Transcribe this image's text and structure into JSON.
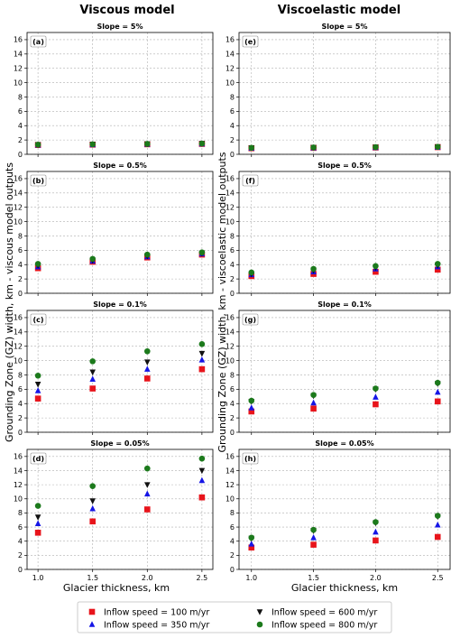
{
  "columns": [
    {
      "title": "Viscous model",
      "ylabel": "Grounding Zone (GZ) width, km - viscous model outputs"
    },
    {
      "title": "Viscoelastic model",
      "ylabel": "Grounding Zone (GZ) width, km - viscoelastic model outputs"
    }
  ],
  "xlabel": "Glacier thickness, km",
  "colors": {
    "s100": "#e8141b",
    "s350": "#1515e6",
    "s600": "#111111",
    "s800": "#1c7a1c"
  },
  "legend": [
    {
      "label": "Inflow speed = 100 m/yr",
      "marker": "square",
      "color": "#e8141b"
    },
    {
      "label": "Inflow speed = 600 m/yr",
      "marker": "triangle-down",
      "color": "#111111"
    },
    {
      "label": "Inflow speed = 350 m/yr",
      "marker": "triangle-up",
      "color": "#1515e6"
    },
    {
      "label": "Inflow speed = 800 m/yr",
      "marker": "circle",
      "color": "#1c7a1c"
    }
  ],
  "chart_data": [
    {
      "panel": "(a)",
      "type": "scatter",
      "title": "Slope = 5%",
      "x": [
        1.0,
        1.5,
        2.0,
        2.5
      ],
      "xticks": [
        "1.0",
        "1.5",
        "2.0",
        "2.5"
      ],
      "ylim": [
        0,
        17
      ],
      "yticks": [
        0,
        2,
        4,
        6,
        8,
        10,
        12,
        14,
        16
      ],
      "grid": true,
      "series": [
        {
          "name": "Inflow speed = 100 m/yr",
          "values": [
            1.3,
            1.35,
            1.4,
            1.45
          ]
        },
        {
          "name": "Inflow speed = 350 m/yr",
          "values": [
            1.3,
            1.35,
            1.4,
            1.45
          ]
        },
        {
          "name": "Inflow speed = 600 m/yr",
          "values": [
            1.35,
            1.4,
            1.45,
            1.5
          ]
        },
        {
          "name": "Inflow speed = 800 m/yr",
          "values": [
            1.35,
            1.4,
            1.45,
            1.5
          ]
        }
      ]
    },
    {
      "panel": "(b)",
      "type": "scatter",
      "title": "Slope = 0.5%",
      "x": [
        1.0,
        1.5,
        2.0,
        2.5
      ],
      "xticks": [
        "1.0",
        "1.5",
        "2.0",
        "2.5"
      ],
      "ylim": [
        0,
        17
      ],
      "yticks": [
        0,
        2,
        4,
        6,
        8,
        10,
        12,
        14,
        16
      ],
      "grid": true,
      "series": [
        {
          "name": "Inflow speed = 100 m/yr",
          "values": [
            3.5,
            4.4,
            5.0,
            5.4
          ]
        },
        {
          "name": "Inflow speed = 350 m/yr",
          "values": [
            3.7,
            4.5,
            5.1,
            5.5
          ]
        },
        {
          "name": "Inflow speed = 600 m/yr",
          "values": [
            3.9,
            4.6,
            5.2,
            5.6
          ]
        },
        {
          "name": "Inflow speed = 800 m/yr",
          "values": [
            4.1,
            4.8,
            5.4,
            5.7
          ]
        }
      ]
    },
    {
      "panel": "(c)",
      "type": "scatter",
      "title": "Slope = 0.1%",
      "x": [
        1.0,
        1.5,
        2.0,
        2.5
      ],
      "xticks": [
        "1.0",
        "1.5",
        "2.0",
        "2.5"
      ],
      "ylim": [
        0,
        17
      ],
      "yticks": [
        0,
        2,
        4,
        6,
        8,
        10,
        12,
        14,
        16
      ],
      "grid": true,
      "series": [
        {
          "name": "Inflow speed = 100 m/yr",
          "values": [
            4.7,
            6.1,
            7.5,
            8.8
          ]
        },
        {
          "name": "Inflow speed = 350 m/yr",
          "values": [
            5.8,
            7.4,
            8.8,
            10.1
          ]
        },
        {
          "name": "Inflow speed = 600 m/yr",
          "values": [
            6.7,
            8.4,
            9.8,
            11.0
          ]
        },
        {
          "name": "Inflow speed = 800 m/yr",
          "values": [
            7.9,
            9.9,
            11.3,
            12.3
          ]
        }
      ]
    },
    {
      "panel": "(d)",
      "type": "scatter",
      "title": "Slope = 0.05%",
      "x": [
        1.0,
        1.5,
        2.0,
        2.5
      ],
      "xticks": [
        "1.0",
        "1.5",
        "2.0",
        "2.5"
      ],
      "ylim": [
        0,
        17
      ],
      "yticks": [
        0,
        2,
        4,
        6,
        8,
        10,
        12,
        14,
        16
      ],
      "grid": true,
      "series": [
        {
          "name": "Inflow speed = 100 m/yr",
          "values": [
            5.2,
            6.8,
            8.5,
            10.2
          ]
        },
        {
          "name": "Inflow speed = 350 m/yr",
          "values": [
            6.5,
            8.6,
            10.7,
            12.6
          ]
        },
        {
          "name": "Inflow speed = 600 m/yr",
          "values": [
            7.4,
            9.7,
            12.0,
            14.0
          ]
        },
        {
          "name": "Inflow speed = 800 m/yr",
          "values": [
            9.0,
            11.8,
            14.3,
            15.7
          ]
        }
      ]
    },
    {
      "panel": "(e)",
      "type": "scatter",
      "title": "Slope = 5%",
      "x": [
        1.0,
        1.5,
        2.0,
        2.5
      ],
      "xticks": [
        "1.0",
        "1.5",
        "2.0",
        "2.5"
      ],
      "ylim": [
        0,
        17
      ],
      "yticks": [
        0,
        2,
        4,
        6,
        8,
        10,
        12,
        14,
        16
      ],
      "grid": true,
      "series": [
        {
          "name": "Inflow speed = 100 m/yr",
          "values": [
            0.85,
            0.9,
            0.95,
            1.0
          ]
        },
        {
          "name": "Inflow speed = 350 m/yr",
          "values": [
            0.85,
            0.9,
            0.95,
            1.0
          ]
        },
        {
          "name": "Inflow speed = 600 m/yr",
          "values": [
            0.9,
            0.95,
            1.0,
            1.05
          ]
        },
        {
          "name": "Inflow speed = 800 m/yr",
          "values": [
            0.9,
            0.95,
            1.0,
            1.05
          ]
        }
      ]
    },
    {
      "panel": "(f)",
      "type": "scatter",
      "title": "Slope = 0.5%",
      "x": [
        1.0,
        1.5,
        2.0,
        2.5
      ],
      "xticks": [
        "1.0",
        "1.5",
        "2.0",
        "2.5"
      ],
      "ylim": [
        0,
        17
      ],
      "yticks": [
        0,
        2,
        4,
        6,
        8,
        10,
        12,
        14,
        16
      ],
      "grid": true,
      "series": [
        {
          "name": "Inflow speed = 100 m/yr",
          "values": [
            2.4,
            2.7,
            3.0,
            3.3
          ]
        },
        {
          "name": "Inflow speed = 350 m/yr",
          "values": [
            2.6,
            3.0,
            3.4,
            3.7
          ]
        },
        {
          "name": "Inflow speed = 600 m/yr",
          "values": [
            2.7,
            3.2,
            3.6,
            3.9
          ]
        },
        {
          "name": "Inflow speed = 800 m/yr",
          "values": [
            2.9,
            3.4,
            3.8,
            4.1
          ]
        }
      ]
    },
    {
      "panel": "(g)",
      "type": "scatter",
      "title": "Slope = 0.1%",
      "x": [
        1.0,
        1.5,
        2.0,
        2.5
      ],
      "xticks": [
        "1.0",
        "1.5",
        "2.0",
        "2.5"
      ],
      "ylim": [
        0,
        17
      ],
      "yticks": [
        0,
        2,
        4,
        6,
        8,
        10,
        12,
        14,
        16
      ],
      "grid": true,
      "series": [
        {
          "name": "Inflow speed = 100 m/yr",
          "values": [
            2.9,
            3.3,
            3.9,
            4.3
          ]
        },
        {
          "name": "Inflow speed = 350 m/yr",
          "values": [
            3.4,
            4.1,
            4.9,
            5.6
          ]
        },
        {
          "name": "Inflow speed = 600 m/yr",
          "values": [
            4.3,
            5.1,
            6.0,
            6.8
          ]
        },
        {
          "name": "Inflow speed = 800 m/yr",
          "values": [
            4.4,
            5.2,
            6.1,
            6.9
          ]
        }
      ]
    },
    {
      "panel": "(h)",
      "type": "scatter",
      "title": "Slope = 0.05%",
      "x": [
        1.0,
        1.5,
        2.0,
        2.5
      ],
      "xticks": [
        "1.0",
        "1.5",
        "2.0",
        "2.5"
      ],
      "ylim": [
        0,
        17
      ],
      "yticks": [
        0,
        2,
        4,
        6,
        8,
        10,
        12,
        14,
        16
      ],
      "grid": true,
      "series": [
        {
          "name": "Inflow speed = 100 m/yr",
          "values": [
            3.1,
            3.5,
            4.1,
            4.6
          ]
        },
        {
          "name": "Inflow speed = 350 m/yr",
          "values": [
            3.6,
            4.5,
            5.3,
            6.3
          ]
        },
        {
          "name": "Inflow speed = 600 m/yr",
          "values": [
            4.4,
            5.5,
            6.6,
            7.5
          ]
        },
        {
          "name": "Inflow speed = 800 m/yr",
          "values": [
            4.5,
            5.6,
            6.7,
            7.6
          ]
        }
      ]
    }
  ]
}
